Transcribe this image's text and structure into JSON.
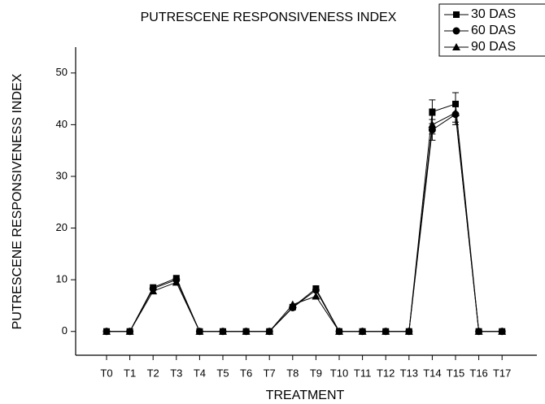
{
  "chart_data": {
    "type": "line",
    "title": "PUTRESCENE RESPONSIVENESS INDEX",
    "x_label": "TREATMENT",
    "y_label": "PUTRESCENE RESPONSIVENESS INDEX",
    "categories": [
      "T0",
      "T1",
      "T2",
      "T3",
      "T4",
      "T5",
      "T6",
      "T7",
      "T8",
      "T9",
      "T10",
      "T11",
      "T12",
      "T13",
      "T14",
      "T15",
      "T16",
      "T17"
    ],
    "series": [
      {
        "name": "30 DAS",
        "color": "#000000",
        "marker": "square",
        "values": [
          0,
          0,
          8.5,
          10.3,
          0,
          0,
          0,
          0,
          4.7,
          8.3,
          0,
          0,
          0,
          0,
          42.5,
          44,
          0,
          0
        ],
        "errors": [
          null,
          null,
          null,
          null,
          null,
          null,
          null,
          null,
          null,
          null,
          null,
          null,
          null,
          null,
          2.3,
          2.2,
          null,
          null
        ]
      },
      {
        "name": "60 DAS",
        "color": "#000000",
        "marker": "circle",
        "values": [
          0,
          0,
          8.3,
          10,
          0,
          0,
          0,
          0,
          4.6,
          8,
          0,
          0,
          0,
          0,
          39,
          42,
          0,
          0
        ],
        "errors": [
          null,
          null,
          null,
          null,
          null,
          null,
          null,
          null,
          null,
          null,
          null,
          null,
          null,
          null,
          2,
          2,
          null,
          null
        ]
      },
      {
        "name": "90 DAS",
        "color": "#000000",
        "marker": "triangle",
        "values": [
          0,
          0,
          7.8,
          9.5,
          0,
          0,
          0,
          0,
          5.2,
          6.8,
          0,
          0,
          0,
          0,
          40,
          42.3,
          0,
          0
        ],
        "errors": [
          null,
          null,
          null,
          null,
          null,
          null,
          null,
          null,
          null,
          null,
          null,
          null,
          null,
          null,
          1.8,
          1.8,
          null,
          null
        ]
      }
    ],
    "ylim": [
      -4.6,
      55
    ],
    "yticks": [
      0,
      10,
      20,
      30,
      40,
      50
    ],
    "grid": false,
    "legend": "top-right"
  }
}
